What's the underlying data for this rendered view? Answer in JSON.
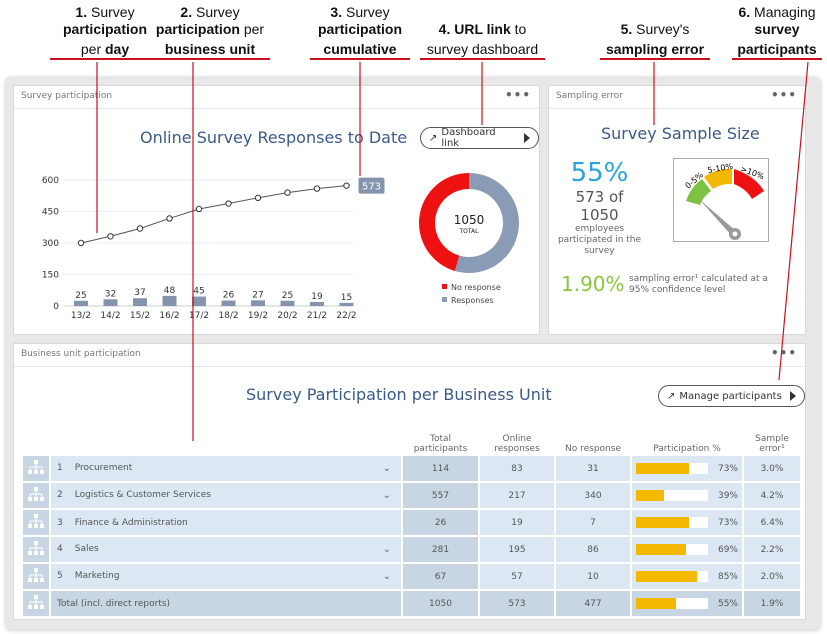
{
  "annotations": [
    {
      "num": "1.",
      "parts": [
        "Survey",
        "participation",
        "per",
        "day"
      ]
    },
    {
      "num": "2.",
      "parts": [
        "Survey",
        "participation",
        "per",
        "business unit"
      ]
    },
    {
      "num": "3.",
      "parts": [
        "Survey",
        "participation",
        "cumulative"
      ]
    },
    {
      "num": "4.",
      "parts": [
        "URL link",
        "to",
        "survey dashboard"
      ]
    },
    {
      "num": "5.",
      "parts": [
        "Survey's",
        "sampling error"
      ]
    },
    {
      "num": "6.",
      "parts": [
        "Managing",
        "survey",
        "participants"
      ]
    }
  ],
  "participation": {
    "panel_title": "Survey participation",
    "menu": "•••",
    "heading": "Online Survey Responses to Date",
    "dashboard_link": "Dashboard link",
    "chart_data": {
      "type": "bar+line",
      "categories": [
        "13/2",
        "14/2",
        "15/2",
        "16/2",
        "17/2",
        "18/2",
        "19/2",
        "20/2",
        "21/2",
        "22/2"
      ],
      "series": [
        {
          "type": "bar",
          "values": [
            25,
            32,
            37,
            48,
            45,
            26,
            27,
            25,
            19,
            15
          ]
        },
        {
          "type": "line",
          "values": [
            300,
            332,
            369,
            417,
            462,
            488,
            515,
            540,
            559,
            573
          ]
        }
      ],
      "ylim": [
        0,
        600
      ],
      "yticks": [
        0,
        150,
        300,
        450,
        600
      ],
      "last_label": "573",
      "bar_color": "#8494ad"
    },
    "donut": {
      "total": "1050",
      "total_label": "TOTAL",
      "responses": 573,
      "no_response": 477,
      "legend": [
        "No response",
        "Responses"
      ],
      "colors": [
        "#ee1111",
        "#8a9bb5"
      ]
    }
  },
  "sampling": {
    "panel_title": "Sampling error",
    "menu": "•••",
    "heading": "Survey Sample Size",
    "percent": "55%",
    "count": "573 of 1050",
    "desc": "employees participated in the survey",
    "error": "1.90%",
    "error_desc": "sampling error¹ calculated at a 95% confidence level",
    "gauge": [
      "0-5%",
      "5-10%",
      ">10%"
    ],
    "gauge_colors": [
      "#7dc242",
      "#f5b800",
      "#ee1111"
    ]
  },
  "business": {
    "panel_title": "Business unit participation",
    "menu": "•••",
    "heading": "Survey Participation per Business Unit",
    "manage": "Manage participants",
    "columns": [
      "Total participants",
      "Online responses",
      "No response",
      "Participation %",
      "Sample error¹"
    ],
    "rows": [
      {
        "idx": "1",
        "name": "Procurement",
        "total": "114",
        "online": "83",
        "none": "31",
        "pct": 73,
        "pct_label": "73%",
        "err": "3.0%",
        "expand": true
      },
      {
        "idx": "2",
        "name": "Logistics & Customer Services",
        "total": "557",
        "online": "217",
        "none": "340",
        "pct": 39,
        "pct_label": "39%",
        "err": "4.2%",
        "expand": true
      },
      {
        "idx": "3",
        "name": "Finance & Administration",
        "total": "26",
        "online": "19",
        "none": "7",
        "pct": 73,
        "pct_label": "73%",
        "err": "6.4%",
        "expand": false
      },
      {
        "idx": "4",
        "name": "Sales",
        "total": "281",
        "online": "195",
        "none": "86",
        "pct": 69,
        "pct_label": "69%",
        "err": "2.2%",
        "expand": true
      },
      {
        "idx": "5",
        "name": "Marketing",
        "total": "67",
        "online": "57",
        "none": "10",
        "pct": 85,
        "pct_label": "85%",
        "err": "2.0%",
        "expand": true
      }
    ],
    "total_row": {
      "name": "Total (incl. direct reports)",
      "total": "1050",
      "online": "573",
      "none": "477",
      "pct": 55,
      "pct_label": "55%",
      "err": "1.9%"
    }
  }
}
